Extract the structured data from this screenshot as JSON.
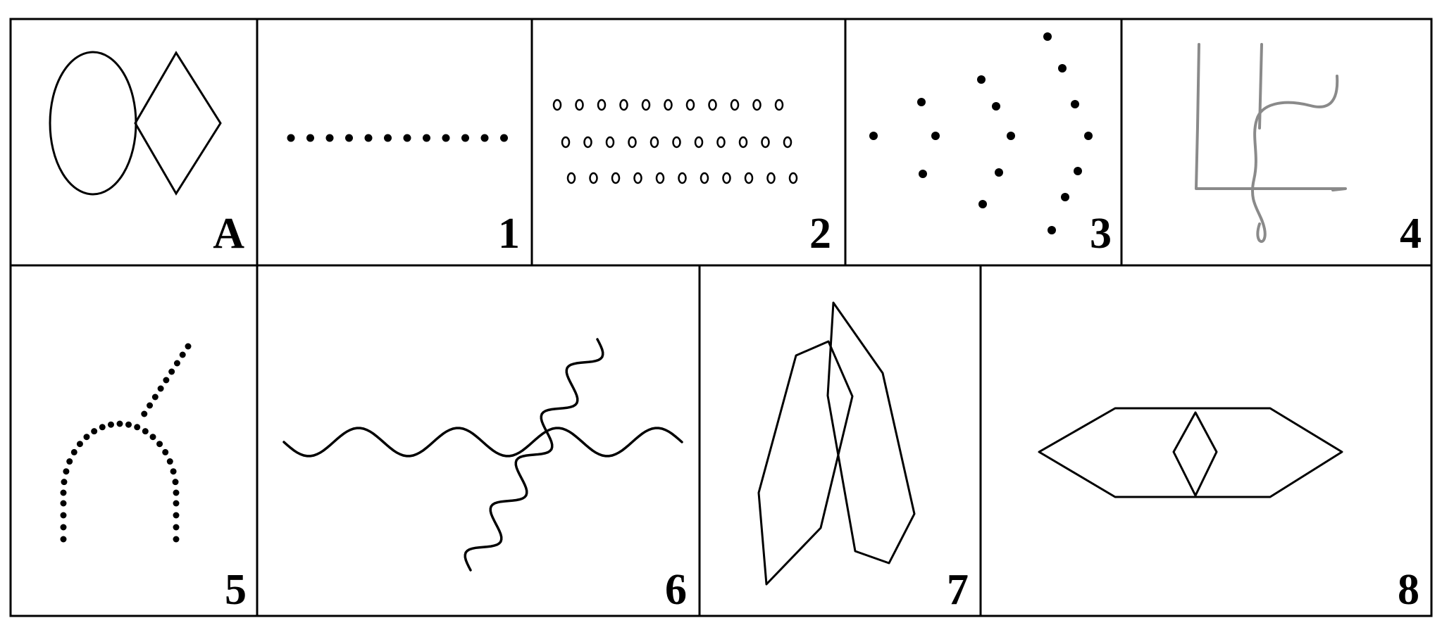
{
  "panels": [
    {
      "id": "A",
      "label": "A",
      "figure": "circle-and-diamond"
    },
    {
      "id": "1",
      "label": "1",
      "figure": "dotted-straight-line"
    },
    {
      "id": "2",
      "label": "2",
      "figure": "rows-of-small-circles"
    },
    {
      "id": "3",
      "label": "3",
      "figure": "nested-dotted-arcs"
    },
    {
      "id": "4",
      "label": "4",
      "figure": "hand-drawn-comb-and-wavy-line"
    },
    {
      "id": "5",
      "label": "5",
      "figure": "dotted-arch-with-diagonal"
    },
    {
      "id": "6",
      "label": "6",
      "figure": "crossing-wavy-lines"
    },
    {
      "id": "7",
      "label": "7",
      "figure": "overlapping-hexagons"
    },
    {
      "id": "8",
      "label": "8",
      "figure": "long-hexagon-with-inner-diamond"
    }
  ],
  "colors": {
    "stroke": "#000000",
    "sketch": "#8a8a8a",
    "background": "#ffffff"
  }
}
